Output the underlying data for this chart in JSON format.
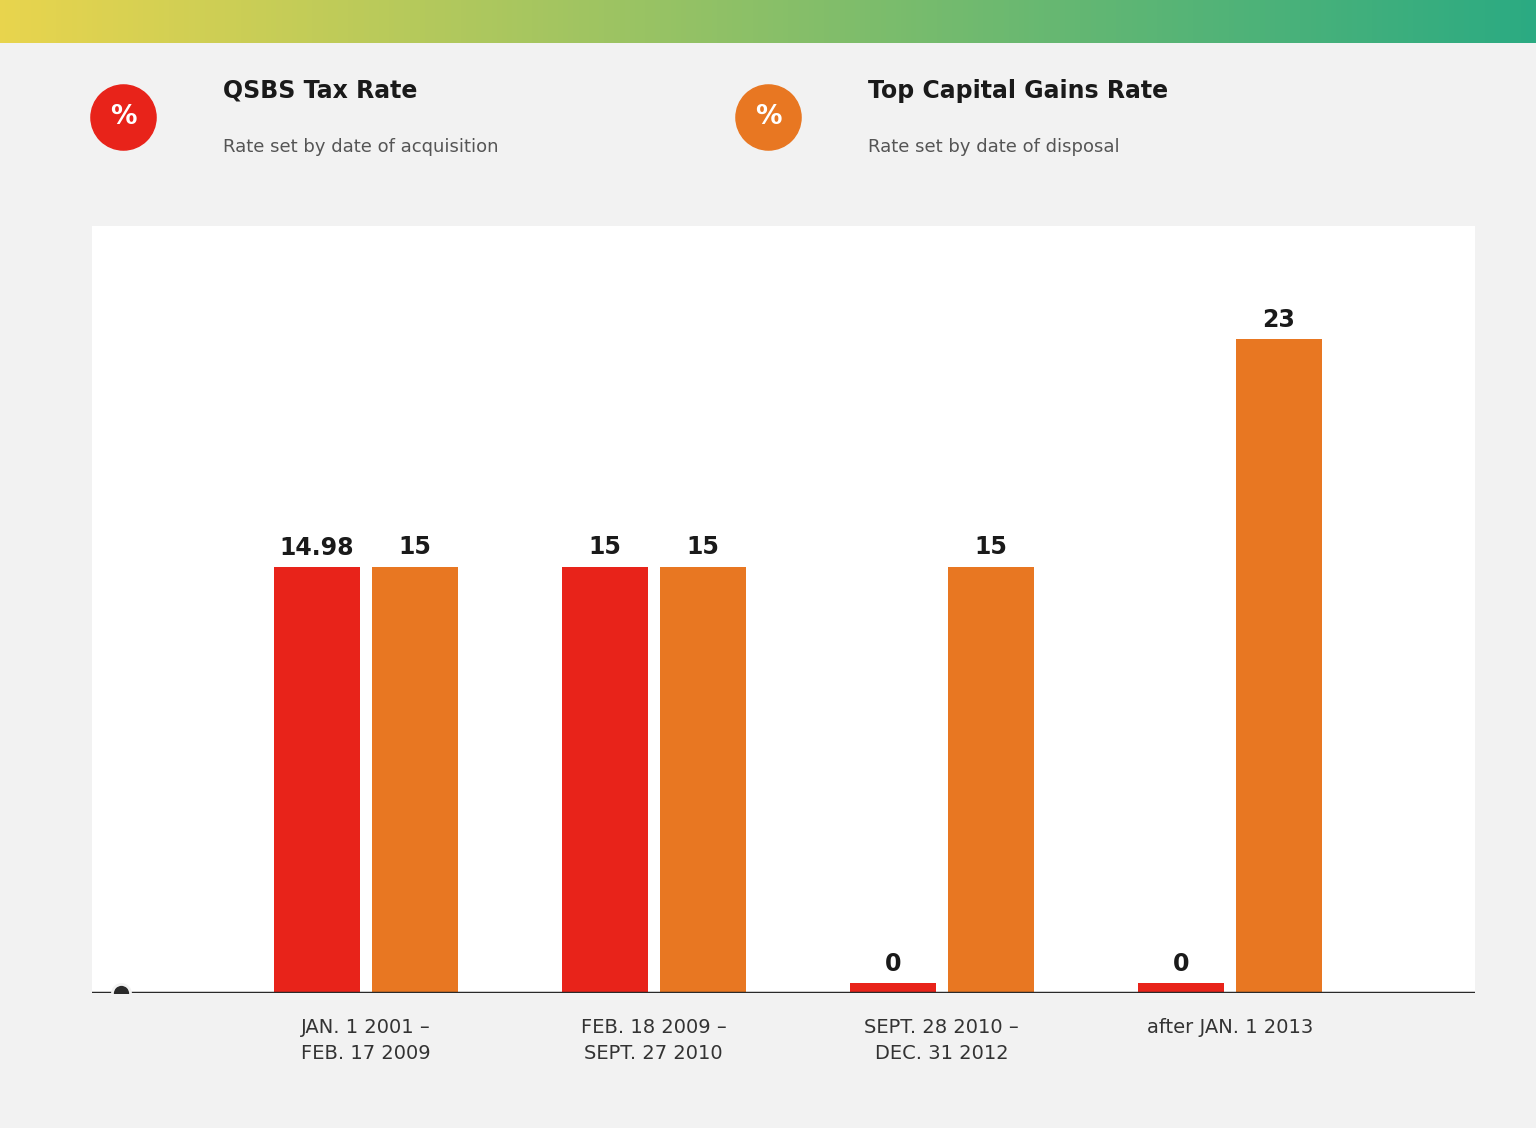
{
  "categories": [
    "JAN. 1 2001 –\nFEB. 17 2009",
    "FEB. 18 2009 –\nSEPT. 27 2010",
    "SEPT. 28 2010 –\nDEC. 31 2012",
    "after JAN. 1 2013"
  ],
  "qsbs_values": [
    14.98,
    15,
    0,
    0
  ],
  "cap_gains_values": [
    15,
    15,
    15,
    23
  ],
  "qsbs_labels": [
    "14.98",
    "15",
    "0",
    "0"
  ],
  "cap_gains_labels": [
    "15",
    "15",
    "15",
    "23"
  ],
  "qsbs_color": "#e8231a",
  "cap_gains_color": "#e87722",
  "background_color": "#f2f2f2",
  "chart_bg_color": "#ffffff",
  "bar_width": 0.3,
  "ylim": [
    0,
    27
  ],
  "legend_qsbs_title": "QSBS Tax Rate",
  "legend_qsbs_subtitle": "Rate set by date of acquisition",
  "legend_cap_title": "Top Capital Gains Rate",
  "legend_cap_subtitle": "Rate set by date of disposal",
  "label_fontsize": 17,
  "tick_label_fontsize": 14,
  "legend_title_fontsize": 17,
  "legend_sub_fontsize": 13,
  "qsbs_min_bar": 0.35,
  "gradient_left": "#e8d44d",
  "gradient_right": "#2aaa82"
}
